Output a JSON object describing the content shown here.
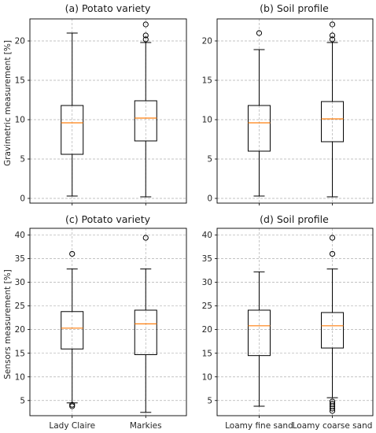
{
  "chart_data": [
    {
      "type": "box",
      "title": "(a) Potato variety",
      "ylabel": "Gravimetric measurement [%]",
      "ylim": [
        -0.6,
        22.8
      ],
      "yticks": [
        0,
        5,
        10,
        15,
        20
      ],
      "categories": [
        "Lady Claire",
        "Markies"
      ],
      "show_xticklabels": false,
      "grid": true,
      "boxes": [
        {
          "whislo": 0.3,
          "q1": 5.6,
          "med": 9.6,
          "q3": 11.8,
          "whishi": 21.0,
          "fliers": []
        },
        {
          "whislo": 0.2,
          "q1": 7.3,
          "med": 10.2,
          "q3": 12.4,
          "whishi": 19.8,
          "fliers": [
            20.2,
            20.7,
            22.1
          ]
        }
      ]
    },
    {
      "type": "box",
      "title": "(b) Soil profile",
      "ylabel": "",
      "ylim": [
        -0.6,
        22.8
      ],
      "yticks": [
        0,
        5,
        10,
        15,
        20
      ],
      "categories": [
        "Loamy fine sand",
        "Loamy coarse sand"
      ],
      "show_xticklabels": false,
      "grid": true,
      "boxes": [
        {
          "whislo": 0.3,
          "q1": 6.0,
          "med": 9.6,
          "q3": 11.8,
          "whishi": 18.9,
          "fliers": [
            21.0
          ]
        },
        {
          "whislo": 0.2,
          "q1": 7.2,
          "med": 10.1,
          "q3": 12.3,
          "whishi": 19.8,
          "fliers": [
            20.2,
            20.7,
            22.1
          ]
        }
      ]
    },
    {
      "type": "box",
      "title": "(c) Potato variety",
      "ylabel": "Sensors measurement [%]",
      "ylim": [
        1.8,
        41.4
      ],
      "yticks": [
        5,
        10,
        15,
        20,
        25,
        30,
        35,
        40
      ],
      "categories": [
        "Lady Claire",
        "Markies"
      ],
      "show_xticklabels": true,
      "grid": true,
      "boxes": [
        {
          "whislo": 4.5,
          "q1": 15.9,
          "med": 20.3,
          "q3": 23.8,
          "whishi": 32.8,
          "fliers": [
            3.8,
            4.1,
            36.0
          ]
        },
        {
          "whislo": 2.5,
          "q1": 14.7,
          "med": 21.2,
          "q3": 24.1,
          "whishi": 32.8,
          "fliers": [
            39.4
          ]
        }
      ]
    },
    {
      "type": "box",
      "title": "(d) Soil profile",
      "ylabel": "",
      "ylim": [
        1.8,
        41.4
      ],
      "yticks": [
        5,
        10,
        15,
        20,
        25,
        30,
        35,
        40
      ],
      "categories": [
        "Loamy fine sand",
        "Loamy coarse sand"
      ],
      "show_xticklabels": true,
      "grid": true,
      "boxes": [
        {
          "whislo": 3.8,
          "q1": 14.5,
          "med": 20.8,
          "q3": 24.1,
          "whishi": 32.2,
          "fliers": []
        },
        {
          "whislo": 5.6,
          "q1": 16.1,
          "med": 20.8,
          "q3": 23.6,
          "whishi": 32.8,
          "fliers": [
            2.8,
            3.3,
            3.8,
            4.3,
            4.8,
            36.0,
            39.4
          ]
        }
      ]
    }
  ],
  "colors": {
    "median": "#ff7f0e",
    "box": "#000000",
    "grid": "#b0b0b0"
  }
}
